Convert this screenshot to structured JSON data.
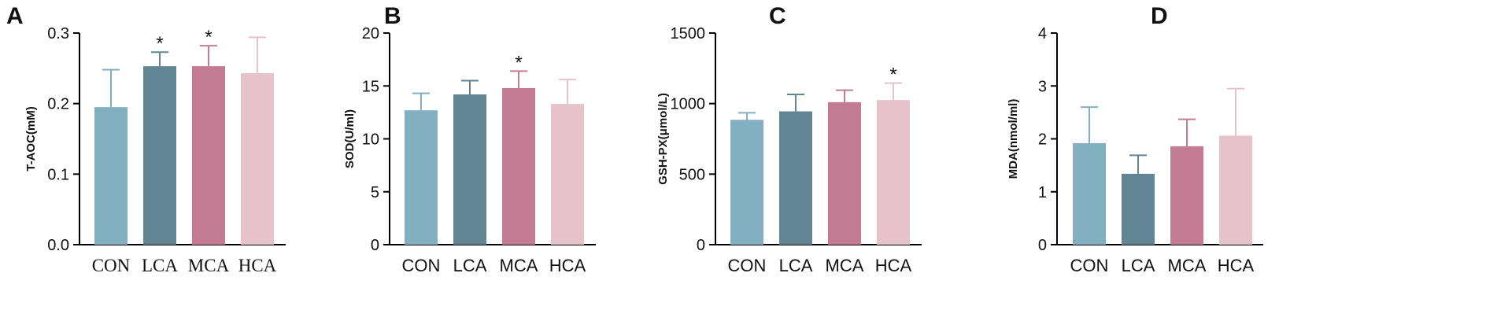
{
  "chart_data": [
    {
      "type": "bar",
      "panel": "A",
      "ylabel": "T-AOC(mM)",
      "categories": [
        "CON",
        "LCA",
        "MCA",
        "HCA"
      ],
      "values": [
        0.195,
        0.253,
        0.253,
        0.243
      ],
      "errors": [
        0.053,
        0.02,
        0.029,
        0.051
      ],
      "significance": [
        "",
        "*",
        "*",
        ""
      ],
      "ylim": [
        0,
        0.3
      ],
      "yticks": [
        0,
        0.1,
        0.2,
        0.3
      ],
      "ytick_labels": [
        "0.0",
        "0.1",
        "0.2",
        "0.3"
      ],
      "colors": [
        "#82b0c0",
        "#618593",
        "#c27b92",
        "#e6c2ca"
      ]
    },
    {
      "type": "bar",
      "panel": "B",
      "ylabel": "SOD(U/ml)",
      "categories": [
        "CON",
        "LCA",
        "MCA",
        "HCA"
      ],
      "values": [
        12.7,
        14.2,
        14.8,
        13.3
      ],
      "errors": [
        1.6,
        1.3,
        1.6,
        2.3
      ],
      "significance": [
        "",
        "",
        "*",
        ""
      ],
      "ylim": [
        0,
        20
      ],
      "yticks": [
        0,
        5,
        10,
        15,
        20
      ],
      "ytick_labels": [
        "0",
        "5",
        "10",
        "15",
        "20"
      ],
      "colors": [
        "#82b0c0",
        "#618593",
        "#c27b92",
        "#e6c2ca"
      ]
    },
    {
      "type": "bar",
      "panel": "C",
      "ylabel": "GSH-PX(μmol/L)",
      "categories": [
        "CON",
        "LCA",
        "MCA",
        "HCA"
      ],
      "values": [
        885,
        945,
        1010,
        1025
      ],
      "errors": [
        50,
        120,
        85,
        120
      ],
      "significance": [
        "",
        "",
        "",
        "*"
      ],
      "ylim": [
        0,
        1500
      ],
      "yticks": [
        0,
        500,
        1000,
        1500
      ],
      "ytick_labels": [
        "0",
        "500",
        "1000",
        "1500"
      ],
      "colors": [
        "#82b0c0",
        "#618593",
        "#c27b92",
        "#e6c2ca"
      ]
    },
    {
      "type": "bar",
      "panel": "D",
      "ylabel": "MDA(nmol/ml)",
      "categories": [
        "CON",
        "LCA",
        "MCA",
        "HCA"
      ],
      "values": [
        1.92,
        1.34,
        1.86,
        2.06
      ],
      "errors": [
        0.68,
        0.35,
        0.51,
        0.89
      ],
      "significance": [
        "",
        "",
        "",
        ""
      ],
      "ylim": [
        0,
        4
      ],
      "yticks": [
        0,
        1,
        2,
        3,
        4
      ],
      "ytick_labels": [
        "0",
        "1",
        "2",
        "3",
        "4"
      ],
      "colors": [
        "#82b0c0",
        "#618593",
        "#c27b92",
        "#e6c2ca"
      ]
    }
  ]
}
